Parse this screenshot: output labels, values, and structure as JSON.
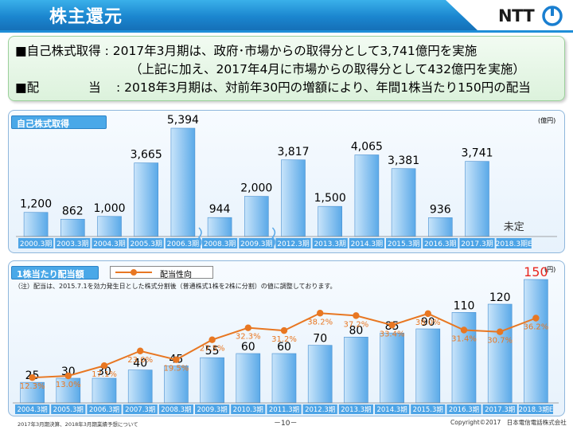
{
  "header": {
    "title": "株主還元",
    "logo_text": "NTT"
  },
  "summary": {
    "line1": "■自己株式取得 : 2017年3月期は、政府･市場からの取得分として3,741億円を実施",
    "line2": "（上記に加え、2017年4月に市場からの取得分として432億円を実施）",
    "line3_label": "■配　　　　当",
    "line3_text": ": 2018年3月期は、対前年30円の増額により、年間1株当たり150円の配当"
  },
  "chart_data": [
    {
      "type": "bar",
      "title": "自己株式取得",
      "ylabel": "(億円)",
      "categories": [
        "2000.3期",
        "2003.3期",
        "2004.3期",
        "2005.3期",
        "2006.3期",
        "2008.3期",
        "2009.3期",
        "2012.3期",
        "2013.3期",
        "2014.3期",
        "2015.3期",
        "2016.3期",
        "2017.3期",
        "2018.3期E"
      ],
      "values": [
        1200,
        862,
        1000,
        3665,
        5394,
        944,
        2000,
        3817,
        1500,
        4065,
        3381,
        936,
        3741,
        null
      ],
      "value_labels": [
        "1,200",
        "862",
        "1,000",
        "3,665",
        "5,394",
        "944",
        "2,000",
        "3,817",
        "1,500",
        "4,065",
        "3,381",
        "936",
        "3,741",
        "未定"
      ],
      "ylim": [
        0,
        5500
      ],
      "grid": false,
      "axis_breaks_after": [
        "2006.3期",
        "2009.3期"
      ]
    },
    {
      "type": "bar",
      "title": "1株当たり配当額",
      "ylabel": "(円)",
      "categories": [
        "2004.3期",
        "2005.3期",
        "2006.3期",
        "2007.3期",
        "2008.3期",
        "2009.3期",
        "2010.3期",
        "2011.3期",
        "2012.3期",
        "2013.3期",
        "2014.3期",
        "2015.3期",
        "2016.3期",
        "2017.3期",
        "2018.3期E"
      ],
      "values": [
        25,
        30,
        30,
        40,
        45,
        55,
        60,
        60,
        70,
        80,
        85,
        90,
        110,
        120,
        150
      ],
      "ylim": [
        0,
        155
      ],
      "highlight_color": "#e8261e",
      "line_series": {
        "name": "配当性向",
        "values": [
          12.3,
          13.0,
          17.1,
          23.0,
          19.5,
          27.5,
          32.3,
          31.2,
          38.2,
          37.2,
          33.4,
          38.0,
          31.4,
          30.7,
          36.2
        ],
        "labels": [
          "12.3%",
          "13.0%",
          "17.1%",
          "23.0%",
          "19.5%",
          "27.5%",
          "32.3%",
          "31.2%",
          "38.2%",
          "37.2%",
          "33.4%",
          "38.0%",
          "31.4%",
          "30.7%",
          "36.2%"
        ],
        "ylim": [
          5,
          45
        ],
        "color": "#e87722"
      },
      "legend": "top-left",
      "note": "（注）配当は、2015.7.1を効力発生日とした株式分割後（普通株式1株を2株に分割）の値に調整しております。"
    }
  ],
  "footer": {
    "left": "2017年3月期決算、2018年3月期業績予想について",
    "page": "－10－",
    "right": "Copyright©2017　日本電信電話株式会社"
  },
  "colors": {
    "bar_light": "#c8e4fa",
    "bar_dark": "#5aa9e8",
    "axis_label_bg": "#4da4e6",
    "accent": "#1f8ed8"
  }
}
